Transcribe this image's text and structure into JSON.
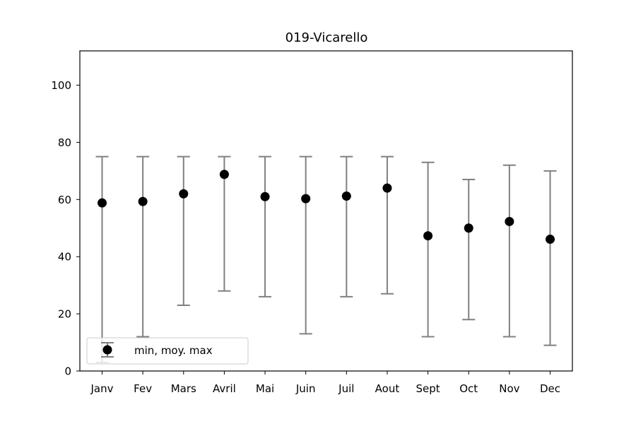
{
  "chart_data": {
    "type": "errorbar",
    "title": "019-Vicarello",
    "xlabel": "",
    "ylabel": "",
    "ylim": [
      0,
      112
    ],
    "yticks": [
      0,
      20,
      40,
      60,
      80,
      100
    ],
    "grid": false,
    "legend": {
      "placement": "lower-left",
      "label": "min, moy. max"
    },
    "colors": {
      "marker": "#000000",
      "errorbar": "#808080",
      "axes": "#000000"
    },
    "categories": [
      "Janv",
      "Fev",
      "Mars",
      "Avril",
      "Mai",
      "Juin",
      "Juil",
      "Aout",
      "Sept",
      "Oct",
      "Nov",
      "Dec"
    ],
    "series": [
      {
        "name": "min, moy. max",
        "mean": [
          58.8,
          59.3,
          62.0,
          68.8,
          61.0,
          60.3,
          61.2,
          64.0,
          47.3,
          50.0,
          52.3,
          46.1
        ],
        "min": [
          3,
          12,
          23,
          28,
          26,
          13,
          26,
          27,
          12,
          18,
          12,
          9
        ],
        "max": [
          75,
          75,
          75,
          75,
          75,
          75,
          75,
          75,
          73,
          67,
          72,
          70
        ]
      }
    ]
  }
}
